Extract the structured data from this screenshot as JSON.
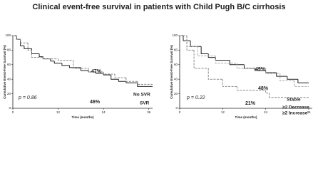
{
  "title": "Clinical event-free survival in patients with Child Pugh B/C cirrhosis",
  "chart_data": [
    {
      "type": "line",
      "step": true,
      "xlabel": "Time (months)",
      "ylabel": "Cumulative Event-Free Survival (%)",
      "xlim": [
        0,
        37
      ],
      "ylim": [
        0,
        100
      ],
      "xticks": [
        0,
        12,
        24,
        36
      ],
      "yticks": [
        0,
        20,
        40,
        60,
        80,
        100
      ],
      "annotations": [
        "p = 0.86",
        "47%",
        "46%"
      ],
      "series": [
        {
          "name": "SVR",
          "color": "#222222",
          "dash": "none",
          "x": [
            0,
            1,
            2,
            3,
            5,
            7,
            8,
            10,
            11,
            13,
            15,
            18,
            20,
            22,
            24,
            26,
            28,
            30,
            33,
            37
          ],
          "values": [
            100,
            95,
            86,
            82,
            75,
            71,
            68,
            65,
            62,
            59,
            56,
            52,
            50,
            48,
            46,
            40,
            37,
            35,
            30,
            30
          ]
        },
        {
          "name": "No SVR",
          "color": "#888888",
          "dash": "3,1.5",
          "x": [
            0,
            1,
            2,
            4,
            5,
            8,
            12,
            16,
            20,
            24,
            27,
            30,
            33,
            37
          ],
          "values": [
            100,
            95,
            90,
            80,
            70,
            68,
            66,
            55,
            50,
            47,
            42,
            37,
            33,
            33
          ]
        }
      ]
    },
    {
      "type": "line",
      "step": true,
      "xlabel": "Time (months)",
      "ylabel": "Cumulative Event-Free Survival (%)",
      "xlim": [
        0,
        37
      ],
      "ylim": [
        0,
        100
      ],
      "xticks": [
        0,
        12,
        24,
        36
      ],
      "yticks": [
        0,
        20,
        40,
        60,
        80,
        100
      ],
      "annotations": [
        "p = 0.22",
        "49%",
        "48%",
        "21%"
      ],
      "series": [
        {
          "name": "Stable",
          "color": "#222222",
          "dash": "none",
          "x": [
            0,
            1,
            3,
            6,
            8,
            10,
            14,
            18,
            21,
            24,
            27,
            30,
            33,
            36
          ],
          "values": [
            100,
            93,
            85,
            75,
            70,
            66,
            60,
            55,
            52,
            49,
            44,
            40,
            35,
            35
          ]
        },
        {
          "name": "≥2 Decrease",
          "color": "#aaaaaa",
          "dash": "3,1.5",
          "x": [
            0,
            2,
            5,
            10,
            16,
            24,
            28,
            32,
            36
          ],
          "values": [
            100,
            85,
            72,
            62,
            55,
            48,
            38,
            30,
            30
          ]
        },
        {
          "name": "≥2 Increase",
          "color": "#888888",
          "dash": "3,1.5",
          "x": [
            0,
            2,
            4,
            8,
            12,
            16,
            24,
            25,
            36
          ],
          "values": [
            100,
            80,
            55,
            40,
            30,
            25,
            21,
            15,
            15
          ]
        }
      ]
    }
  ]
}
